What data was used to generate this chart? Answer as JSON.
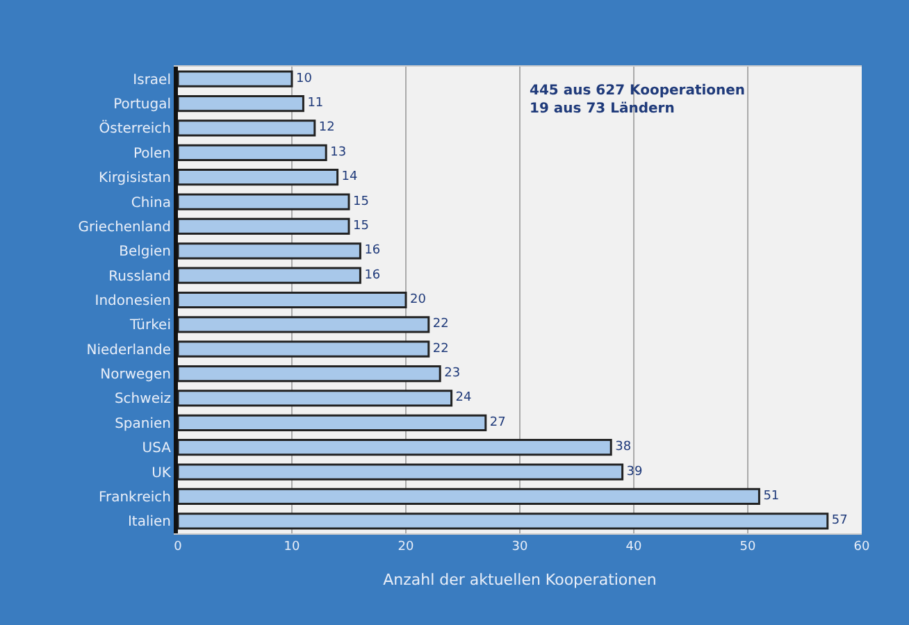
{
  "chart_data": {
    "type": "bar",
    "orientation": "horizontal",
    "xlabel": "Anzahl der aktuellen Kooperationen",
    "categories": [
      "Israel",
      "Portugal",
      "Österreich",
      "Polen",
      "Kirgisistan",
      "China",
      "Griechenland",
      "Belgien",
      "Russland",
      "Indonesien",
      "Türkei",
      "Niederlande",
      "Norwegen",
      "Schweiz",
      "Spanien",
      "USA",
      "UK",
      "Frankreich",
      "Italien"
    ],
    "values": [
      10,
      11,
      12,
      13,
      14,
      15,
      15,
      16,
      16,
      20,
      22,
      22,
      23,
      24,
      27,
      38,
      39,
      51,
      57
    ],
    "color": "#a8c8ea",
    "data_labels": true,
    "xlim": [
      0,
      60
    ],
    "xticks": [
      0,
      10,
      20,
      30,
      40,
      50,
      60
    ],
    "grid": "x",
    "legend": false,
    "annotations": [
      "445 aus 627 Kooperationen\n19 aus 73 Ländern"
    ]
  }
}
